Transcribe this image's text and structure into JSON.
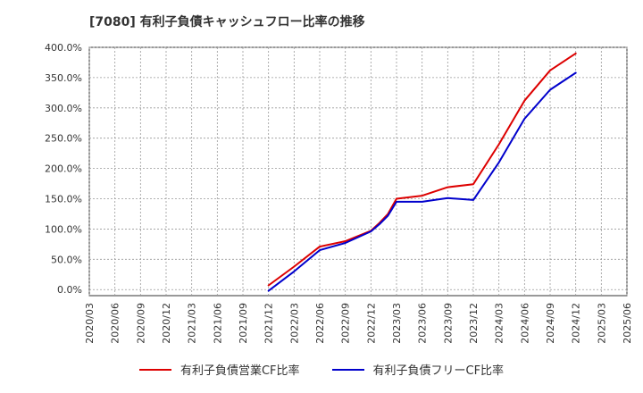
{
  "title": "[7080]  有利子負債キャッシュフロー比率の推移",
  "chart_data": {
    "type": "line",
    "title": "[7080]  有利子負債キャッシュフロー比率の推移",
    "xlabel": "",
    "ylabel": "",
    "x_ticks": [
      "2020/03",
      "2020/06",
      "2020/09",
      "2020/12",
      "2021/03",
      "2021/06",
      "2021/09",
      "2021/12",
      "2022/03",
      "2022/06",
      "2022/09",
      "2022/12",
      "2023/03",
      "2023/06",
      "2023/09",
      "2023/12",
      "2024/03",
      "2024/06",
      "2024/09",
      "2024/12",
      "2025/03",
      "2025/06"
    ],
    "y_ticks": [
      "0.0%",
      "50.0%",
      "100.0%",
      "150.0%",
      "200.0%",
      "250.0%",
      "300.0%",
      "350.0%",
      "400.0%"
    ],
    "ylim": [
      -10,
      400
    ],
    "grid": true,
    "legend_position": "bottom",
    "series": [
      {
        "name": "有利子負債営業CF比率",
        "color": "#dd0000",
        "points": [
          [
            "2021/12",
            7
          ],
          [
            "2022/03",
            38
          ],
          [
            "2022/06",
            71
          ],
          [
            "2022/09",
            80
          ],
          [
            "2022/12",
            97
          ],
          [
            "2023/01",
            110
          ],
          [
            "2023/02",
            125
          ],
          [
            "2023/03",
            150
          ],
          [
            "2023/06",
            155
          ],
          [
            "2023/09",
            169
          ],
          [
            "2023/12",
            174
          ],
          [
            "2024/03",
            240
          ],
          [
            "2024/06",
            312
          ],
          [
            "2024/09",
            362
          ],
          [
            "2024/12",
            390
          ]
        ]
      },
      {
        "name": "有利子負債フリーCF比率",
        "color": "#0000cc",
        "points": [
          [
            "2021/12",
            -2
          ],
          [
            "2022/03",
            30
          ],
          [
            "2022/06",
            65
          ],
          [
            "2022/09",
            77
          ],
          [
            "2022/12",
            96
          ],
          [
            "2023/01",
            108
          ],
          [
            "2023/02",
            122
          ],
          [
            "2023/03",
            145
          ],
          [
            "2023/06",
            145
          ],
          [
            "2023/09",
            151
          ],
          [
            "2023/12",
            148
          ],
          [
            "2024/03",
            210
          ],
          [
            "2024/06",
            282
          ],
          [
            "2024/09",
            330
          ],
          [
            "2024/12",
            358
          ]
        ]
      }
    ]
  },
  "legend": {
    "series1_label": "有利子負債営業CF比率",
    "series2_label": "有利子負債フリーCF比率",
    "series1_color": "#dd0000",
    "series2_color": "#0000cc"
  }
}
